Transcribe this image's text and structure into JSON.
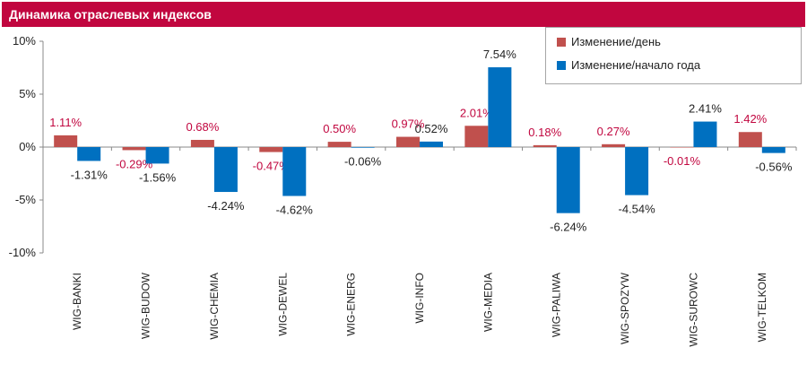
{
  "header": {
    "title": "Динамика отраслевых индексов"
  },
  "chart_data": {
    "type": "bar",
    "title": "Динамика отраслевых индексов",
    "categories": [
      "WIG-BANKI",
      "WIG-BUDOW",
      "WIG-CHEMIA",
      "WIG-DEWEL",
      "WIG-ENERG",
      "WIG-INFO",
      "WIG-MEDIA",
      "WIG-PALIWA",
      "WIG-SPOZYW",
      "WIG-SUROWC",
      "WIG-TELKOM"
    ],
    "series": [
      {
        "name": "Изменение/день",
        "color": "#c0504d",
        "values": [
          1.11,
          -0.29,
          0.68,
          -0.47,
          0.5,
          0.97,
          2.01,
          0.18,
          0.27,
          -0.01,
          1.42
        ],
        "labels": [
          "1.11%",
          "-0.29%",
          "0.68%",
          "-0.47%",
          "0.50%",
          "0.97%",
          "2.01%",
          "0.18%",
          "0.27%",
          "-0.01%",
          "1.42%"
        ],
        "label_color": "#c1063f"
      },
      {
        "name": "Изменение/начало года",
        "color": "#0070c0",
        "values": [
          -1.31,
          -1.56,
          -4.24,
          -4.62,
          -0.06,
          0.52,
          7.54,
          -6.24,
          -4.54,
          2.41,
          -0.56
        ],
        "labels": [
          "-1.31%",
          "-1.56%",
          "-4.24%",
          "-4.62%",
          "-0.06%",
          "0.52%",
          "7.54%",
          "-6.24%",
          "-4.54%",
          "2.41%",
          "-0.56%"
        ],
        "label_color": "#222222"
      }
    ],
    "y_ticks": [
      "10%",
      "5%",
      "0%",
      "-5%",
      "-10%"
    ],
    "ylim": [
      -10,
      10
    ],
    "grid": false,
    "legend_position": "top-right"
  }
}
